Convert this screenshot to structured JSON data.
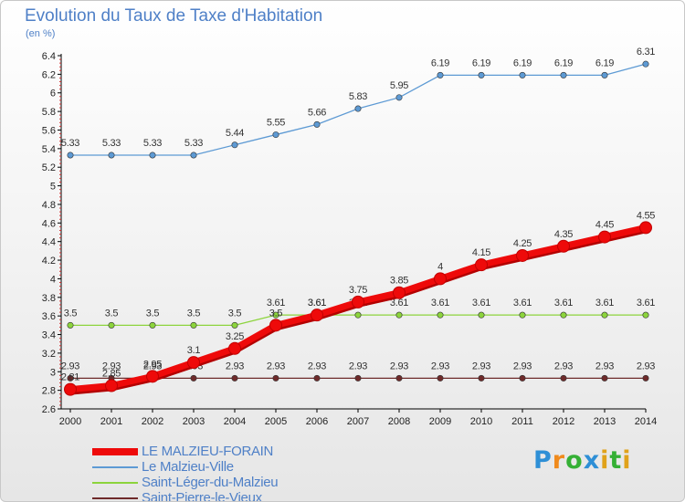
{
  "title": "Evolution du Taux de Taxe d'Habitation",
  "unit": "(en %)",
  "brand": {
    "letters": [
      {
        "ch": "P",
        "color": "#2e8fd6"
      },
      {
        "ch": "r",
        "color": "#f08a1c"
      },
      {
        "ch": "o",
        "color": "#35b035"
      },
      {
        "ch": "x",
        "color": "#2e8fd6"
      },
      {
        "ch": "i",
        "color": "#e0a21a"
      },
      {
        "ch": "t",
        "color": "#35b035"
      },
      {
        "ch": "i",
        "color": "#e0a21a"
      }
    ]
  },
  "chart_data": {
    "type": "line",
    "title": "Evolution du Taux de Taxe d'Habitation",
    "ylabel": "(en %)",
    "xlabel": "",
    "x": [
      2000,
      2001,
      2002,
      2003,
      2004,
      2005,
      2006,
      2007,
      2008,
      2009,
      2010,
      2011,
      2012,
      2013,
      2014
    ],
    "ylim": [
      2.6,
      6.4
    ],
    "yticks": [
      2.6,
      2.8,
      3,
      3.2,
      3.4,
      3.6,
      3.8,
      4,
      4.2,
      4.4,
      4.6,
      4.8,
      5,
      5.2,
      5.4,
      5.6,
      5.8,
      6,
      6.2,
      6.4
    ],
    "ytick_labels": [
      "2.6",
      "2.8",
      "3",
      "3.2",
      "3.4",
      "3.6",
      "3.8",
      "4",
      "4.2",
      "4.4",
      "4.6",
      "4.8",
      "5",
      "5.2",
      "5.4",
      "5.6",
      "5.8",
      "6",
      "6.2",
      "6.4"
    ],
    "grid": false,
    "legend": "bottom-left",
    "series": [
      {
        "name": "Le Malzieu-Ville",
        "color": "#5d9ad4",
        "values": [
          5.33,
          5.33,
          5.33,
          5.33,
          5.44,
          5.55,
          5.66,
          5.83,
          5.95,
          6.19,
          6.19,
          6.19,
          6.19,
          6.19,
          6.31
        ],
        "labels": [
          "5.33",
          "5.33",
          "5.33",
          "5.33",
          "5.44",
          "5.55",
          "5.66",
          "5.83",
          "5.95",
          "6.19",
          "6.19",
          "6.19",
          "6.19",
          "6.19",
          "6.31"
        ]
      },
      {
        "name": "Saint-Léger-du-Malzieu",
        "color": "#8cd43c",
        "values": [
          3.5,
          3.5,
          3.5,
          3.5,
          3.5,
          3.61,
          3.61,
          3.61,
          3.61,
          3.61,
          3.61,
          3.61,
          3.61,
          3.61,
          3.61
        ],
        "labels": [
          "3.5",
          "3.5",
          "3.5",
          "3.5",
          "3.5",
          "3.61",
          "3.61",
          "3.61",
          "3.61",
          "3.61",
          "3.61",
          "3.61",
          "3.61",
          "3.61",
          "3.61"
        ]
      },
      {
        "name": "Saint-Pierre-le-Vieux",
        "color": "#6e2a2a",
        "values": [
          2.93,
          2.93,
          2.93,
          2.93,
          2.93,
          2.93,
          2.93,
          2.93,
          2.93,
          2.93,
          2.93,
          2.93,
          2.93,
          2.93,
          2.93
        ],
        "labels": [
          "2.93",
          "2.93",
          "2.93",
          "2.93",
          "2.93",
          "2.93",
          "2.93",
          "2.93",
          "2.93",
          "2.93",
          "2.93",
          "2.93",
          "2.93",
          "2.93",
          "2.93"
        ]
      },
      {
        "name": "LE MALZIEU-FORAIN",
        "color": "#ee0a0a",
        "values": [
          2.81,
          2.85,
          2.95,
          3.1,
          3.25,
          3.5,
          3.61,
          3.75,
          3.85,
          4,
          4.15,
          4.25,
          4.35,
          4.45,
          4.55
        ],
        "labels": [
          "2.81",
          "2.85",
          "2.95",
          "3.1",
          "3.25",
          "3.5",
          "3.61",
          "3.75",
          "3.85",
          "4",
          "4.15",
          "4.25",
          "4.35",
          "4.45",
          "4.55"
        ]
      }
    ],
    "legend_entries": [
      "LE MALZIEU-FORAIN",
      "Le Malzieu-Ville",
      "Saint-Léger-du-Malzieu",
      "Saint-Pierre-le-Vieux"
    ]
  }
}
